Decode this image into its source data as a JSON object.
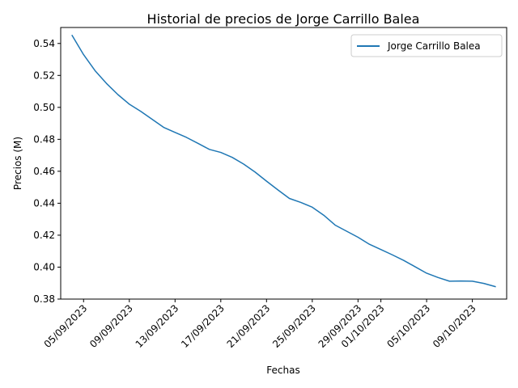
{
  "chart_data": {
    "type": "line",
    "title": "Historial de precios de Jorge Carrillo Balea",
    "xlabel": "Fechas",
    "ylabel": "Precios (M)",
    "ylim": [
      0.38,
      0.55
    ],
    "xlim": [
      "2023-09-03",
      "2023-10-12"
    ],
    "grid": false,
    "legend_position": "top-right",
    "x_tick_labels": [
      "05/09/2023",
      "09/09/2023",
      "13/09/2023",
      "17/09/2023",
      "21/09/2023",
      "25/09/2023",
      "29/09/2023",
      "01/10/2023",
      "05/10/2023",
      "09/10/2023"
    ],
    "x_tick_dates": [
      "2023-09-05",
      "2023-09-09",
      "2023-09-13",
      "2023-09-17",
      "2023-09-21",
      "2023-09-25",
      "2023-09-29",
      "2023-10-01",
      "2023-10-05",
      "2023-10-09"
    ],
    "y_tick_labels": [
      "0.38",
      "0.40",
      "0.42",
      "0.44",
      "0.46",
      "0.48",
      "0.50",
      "0.52",
      "0.54"
    ],
    "y_tick_values": [
      0.38,
      0.4,
      0.42,
      0.44,
      0.46,
      0.48,
      0.5,
      0.52,
      0.54
    ],
    "series": [
      {
        "name": "Jorge Carrillo Balea",
        "color": "#1f77b4",
        "x": [
          "2023-09-04",
          "2023-09-05",
          "2023-09-06",
          "2023-09-07",
          "2023-09-08",
          "2023-09-09",
          "2023-09-10",
          "2023-09-11",
          "2023-09-12",
          "2023-09-13",
          "2023-09-14",
          "2023-09-15",
          "2023-09-16",
          "2023-09-17",
          "2023-09-18",
          "2023-09-19",
          "2023-09-20",
          "2023-09-21",
          "2023-09-22",
          "2023-09-23",
          "2023-09-24",
          "2023-09-25",
          "2023-09-26",
          "2023-09-27",
          "2023-09-28",
          "2023-09-29",
          "2023-09-30",
          "2023-10-01",
          "2023-10-02",
          "2023-10-03",
          "2023-10-04",
          "2023-10-05",
          "2023-10-06",
          "2023-10-07",
          "2023-10-08",
          "2023-10-09",
          "2023-10-10",
          "2023-10-11"
        ],
        "values": [
          0.545,
          0.533,
          0.523,
          0.515,
          0.508,
          0.502,
          0.4975,
          0.4925,
          0.4875,
          0.4843,
          0.4812,
          0.4775,
          0.4737,
          0.4718,
          0.4687,
          0.4645,
          0.4595,
          0.4538,
          0.4483,
          0.443,
          0.4405,
          0.4375,
          0.4325,
          0.4263,
          0.4225,
          0.4187,
          0.4143,
          0.411,
          0.4077,
          0.4042,
          0.4002,
          0.3962,
          0.3935,
          0.3912,
          0.3913,
          0.3912,
          0.3898,
          0.3878
        ]
      }
    ]
  }
}
